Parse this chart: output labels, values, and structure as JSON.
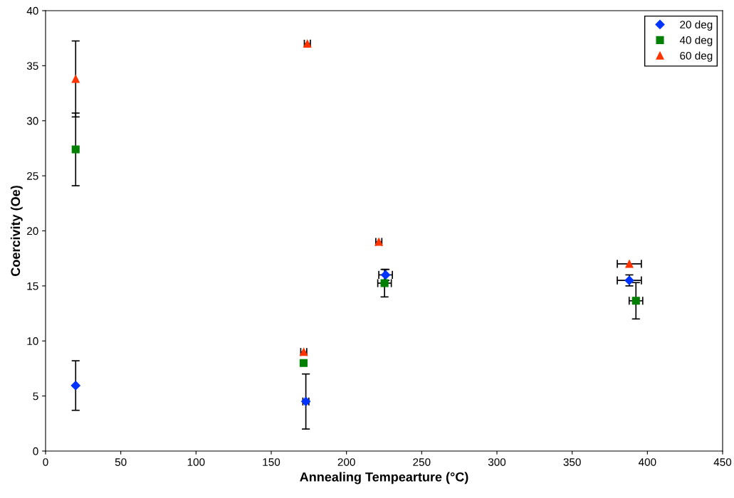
{
  "chart_data": {
    "type": "scatter",
    "xlabel": "Annealing Tempearture (°C)",
    "ylabel": "Coercivity (Oe)",
    "xlim": [
      0,
      450
    ],
    "xticks": [
      0,
      50,
      100,
      150,
      200,
      250,
      300,
      350,
      400,
      450
    ],
    "ylim": [
      0,
      40
    ],
    "yticks": [
      0,
      5,
      10,
      15,
      20,
      25,
      30,
      35,
      40
    ],
    "grid": false,
    "legend": "top right",
    "series": [
      {
        "name": "20 deg",
        "color": "#0033ff",
        "marker": "diamond",
        "x": [
          20,
          173,
          226,
          388
        ],
        "values": [
          5.95,
          4.5,
          16.0,
          15.5
        ],
        "errors": [
          2.25,
          2.5,
          0.5,
          0.5
        ],
        "xerrors": [
          null,
          2,
          4.5,
          8
        ]
      },
      {
        "name": "40 deg",
        "color": "#008000",
        "marker": "square",
        "x": [
          20,
          171.5,
          225.3,
          392.4
        ],
        "values": [
          27.4,
          8.0,
          15.25,
          13.65
        ],
        "errors": [
          3.3,
          null,
          1.25,
          1.65
        ],
        "xerrors": [
          null,
          null,
          4.5,
          4.5
        ]
      },
      {
        "name": "60 deg",
        "color": "#ff3300",
        "marker": "triangle",
        "x": [
          20,
          171.6,
          174,
          221.5,
          388
        ],
        "values": [
          33.8,
          9.0,
          37.0,
          19.0,
          17.0
        ],
        "errors": [
          3.45,
          null,
          null,
          null,
          null
        ],
        "xerrors": [
          null,
          2,
          2,
          2,
          8
        ]
      }
    ]
  }
}
